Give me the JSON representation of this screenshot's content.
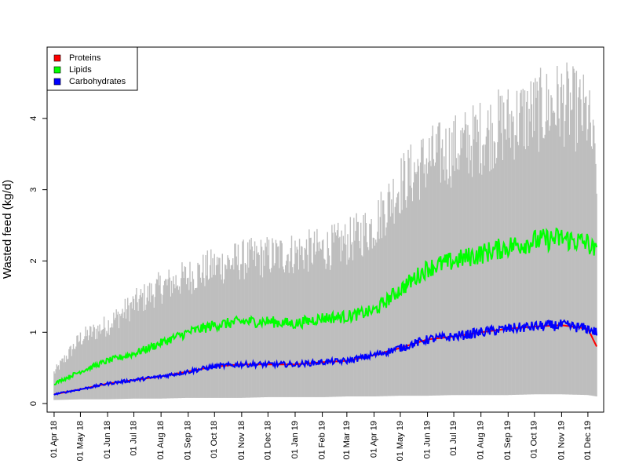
{
  "chart_data": {
    "type": "line",
    "title": "",
    "xlabel": "",
    "ylabel": "Wasted feed (kg/d)",
    "x_range": [
      "2018-03-24",
      "2019-12-19"
    ],
    "ylim": [
      -0.12,
      5.0
    ],
    "y_ticks": [
      0,
      1,
      2,
      3,
      4
    ],
    "x_tick_labels": [
      "01 Apr 18",
      "01 May 18",
      "01 Jun 18",
      "01 Jul 18",
      "01 Aug 18",
      "01 Sep 18",
      "01 Oct 18",
      "01 Nov 18",
      "01 Dec 18",
      "01 Jan 19",
      "01 Feb 19",
      "01 Mar 19",
      "01 Apr 19",
      "01 May 19",
      "01 Jun 19",
      "01 Jul 19",
      "01 Aug 19",
      "01 Sep 19",
      "01 Oct 19",
      "01 Nov 19",
      "01 Dec 19"
    ],
    "x_tick_dates": [
      "2018-04-01",
      "2018-05-01",
      "2018-06-01",
      "2018-07-01",
      "2018-08-01",
      "2018-09-01",
      "2018-10-01",
      "2018-11-01",
      "2018-12-01",
      "2019-01-01",
      "2019-02-01",
      "2019-03-01",
      "2019-04-01",
      "2019-05-01",
      "2019-06-01",
      "2019-07-01",
      "2019-08-01",
      "2019-09-01",
      "2019-10-01",
      "2019-11-01",
      "2019-12-01"
    ],
    "grid": false,
    "legend": "top-left",
    "band": {
      "color": "#bebebe",
      "x": [
        "2018-04-01",
        "2018-05-01",
        "2018-06-01",
        "2018-07-01",
        "2018-08-01",
        "2018-09-01",
        "2018-10-01",
        "2018-11-01",
        "2018-12-01",
        "2019-01-01",
        "2019-02-01",
        "2019-03-01",
        "2019-04-01",
        "2019-05-01",
        "2019-06-01",
        "2019-07-01",
        "2019-08-01",
        "2019-09-01",
        "2019-10-01",
        "2019-11-01",
        "2019-12-01",
        "2019-12-11"
      ],
      "upper": [
        0.45,
        0.95,
        1.15,
        1.45,
        1.7,
        1.85,
        2.0,
        2.1,
        2.15,
        2.2,
        2.25,
        2.35,
        2.6,
        3.2,
        3.55,
        3.7,
        3.9,
        4.1,
        4.25,
        4.4,
        4.2,
        3.4
      ],
      "lower": [
        0.05,
        0.06,
        0.06,
        0.07,
        0.07,
        0.08,
        0.08,
        0.08,
        0.09,
        0.09,
        0.09,
        0.1,
        0.1,
        0.11,
        0.11,
        0.12,
        0.12,
        0.12,
        0.13,
        0.13,
        0.12,
        0.1
      ]
    },
    "series": [
      {
        "name": "Proteins",
        "color": "#ff0000",
        "x": [
          "2018-04-01",
          "2018-05-01",
          "2018-06-01",
          "2018-07-01",
          "2018-08-01",
          "2018-09-01",
          "2018-10-01",
          "2018-11-01",
          "2018-12-01",
          "2019-01-01",
          "2019-02-01",
          "2019-03-01",
          "2019-04-01",
          "2019-05-01",
          "2019-06-01",
          "2019-07-01",
          "2019-08-01",
          "2019-09-01",
          "2019-10-01",
          "2019-11-01",
          "2019-12-01",
          "2019-12-11"
        ],
        "values": [
          0.13,
          0.2,
          0.28,
          0.33,
          0.38,
          0.45,
          0.52,
          0.55,
          0.55,
          0.55,
          0.58,
          0.6,
          0.68,
          0.78,
          0.9,
          0.94,
          1.0,
          1.05,
          1.08,
          1.1,
          1.05,
          0.8
        ]
      },
      {
        "name": "Lipids",
        "color": "#00ff00",
        "x": [
          "2018-04-01",
          "2018-05-01",
          "2018-06-01",
          "2018-07-01",
          "2018-08-01",
          "2018-09-01",
          "2018-10-01",
          "2018-11-01",
          "2018-12-01",
          "2019-01-01",
          "2019-02-01",
          "2019-03-01",
          "2019-04-01",
          "2019-05-01",
          "2019-06-01",
          "2019-07-01",
          "2019-08-01",
          "2019-09-01",
          "2019-10-01",
          "2019-11-01",
          "2019-12-01",
          "2019-12-11"
        ],
        "values": [
          0.28,
          0.45,
          0.6,
          0.7,
          0.85,
          1.0,
          1.1,
          1.15,
          1.15,
          1.12,
          1.2,
          1.22,
          1.3,
          1.6,
          1.9,
          2.0,
          2.1,
          2.2,
          2.28,
          2.32,
          2.25,
          2.1
        ]
      },
      {
        "name": "Carbohydrates",
        "color": "#0000ff",
        "x": [
          "2018-04-01",
          "2018-05-01",
          "2018-06-01",
          "2018-07-01",
          "2018-08-01",
          "2018-09-01",
          "2018-10-01",
          "2018-11-01",
          "2018-12-01",
          "2019-01-01",
          "2019-02-01",
          "2019-03-01",
          "2019-04-01",
          "2019-05-01",
          "2019-06-01",
          "2019-07-01",
          "2019-08-01",
          "2019-09-01",
          "2019-10-01",
          "2019-11-01",
          "2019-12-01",
          "2019-12-11"
        ],
        "values": [
          0.13,
          0.2,
          0.28,
          0.33,
          0.38,
          0.45,
          0.52,
          0.55,
          0.55,
          0.55,
          0.58,
          0.6,
          0.68,
          0.78,
          0.9,
          0.94,
          1.0,
          1.05,
          1.08,
          1.1,
          1.05,
          1.0
        ]
      }
    ]
  }
}
